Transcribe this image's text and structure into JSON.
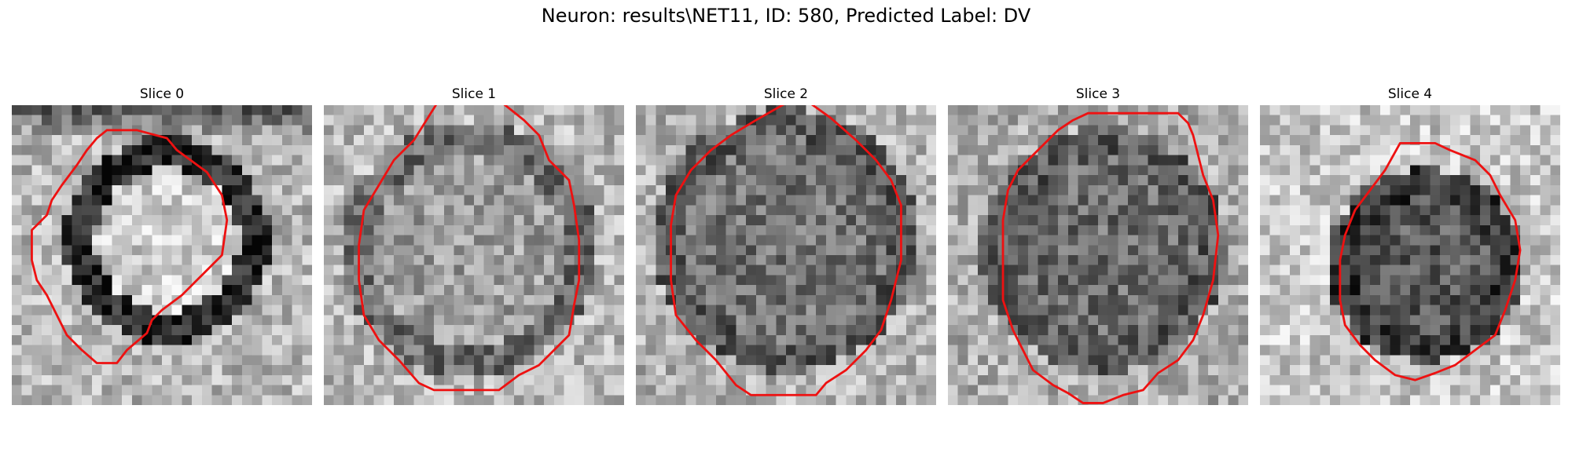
{
  "figure": {
    "title": "Neuron: results\\NET11, ID: 580, Predicted Label: DV"
  },
  "panels": [
    {
      "title": "Slice 0",
      "contour_color": "#ee1111"
    },
    {
      "title": "Slice 1",
      "contour_color": "#ee1111"
    },
    {
      "title": "Slice 2",
      "contour_color": "#ee1111"
    },
    {
      "title": "Slice 3",
      "contour_color": "#ee1111"
    },
    {
      "title": "Slice 4",
      "contour_color": "#ee1111"
    }
  ]
}
